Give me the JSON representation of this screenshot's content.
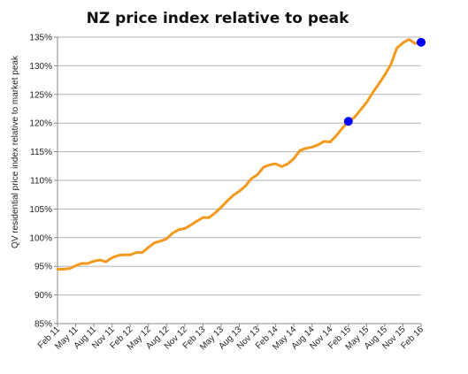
{
  "chart_data": {
    "type": "line",
    "title": "NZ price index relative to peak",
    "ylabel": "QV residential price index relative to market peak",
    "xlabel": "",
    "ylim": [
      85,
      135
    ],
    "y_ticks": [
      "85%",
      "90%",
      "95%",
      "100%",
      "105%",
      "110%",
      "115%",
      "120%",
      "125%",
      "130%",
      "135%"
    ],
    "x_ticks": [
      "Feb 11",
      "May 11",
      "Aug 11",
      "Nov 11",
      "Feb 12",
      "May 12",
      "Aug 12",
      "Nov 12",
      "Feb 13",
      "May 13",
      "Aug 13",
      "Nov 13",
      "Feb 14",
      "May 14",
      "Aug 14",
      "Nov 14",
      "Feb 15",
      "May 15",
      "Aug 15",
      "Nov 15",
      "Feb 16"
    ],
    "grid": true,
    "legend": "none",
    "line_color": "#F39A1E",
    "marker_color": "#0000FF",
    "series": [
      {
        "x": [
          "Feb 11",
          "Mar 11",
          "Apr 11",
          "May 11",
          "Jun 11",
          "Jul 11",
          "Aug 11",
          "Sep 11",
          "Oct 11",
          "Nov 11",
          "Dec 11",
          "Jan 12",
          "Feb 12",
          "Mar 12",
          "Apr 12",
          "May 12",
          "Jun 12",
          "Jul 12",
          "Aug 12",
          "Sep 12",
          "Oct 12",
          "Nov 12",
          "Dec 12",
          "Jan 13",
          "Feb 13",
          "Mar 13",
          "Apr 13",
          "May 13",
          "Jun 13",
          "Jul 13",
          "Aug 13",
          "Sep 13",
          "Oct 13",
          "Nov 13",
          "Dec 13",
          "Jan 14",
          "Feb 14",
          "Mar 14",
          "Apr 14",
          "May 14",
          "Jun 14",
          "Jul 14",
          "Aug 14",
          "Sep 14",
          "Oct 14",
          "Nov 14",
          "Dec 14",
          "Jan 15",
          "Feb 15",
          "Mar 15",
          "Apr 15",
          "May 15",
          "Jun 15",
          "Jul 15",
          "Aug 15",
          "Sep 15",
          "Oct 15",
          "Nov 15",
          "Dec 15",
          "Jan 16",
          "Feb 16"
        ],
        "values": [
          94.5,
          94.5,
          94.6,
          95.1,
          95.5,
          95.5,
          95.9,
          96.1,
          95.8,
          96.5,
          96.9,
          97.0,
          97.0,
          97.4,
          97.4,
          98.3,
          99.1,
          99.4,
          99.8,
          100.8,
          101.4,
          101.6,
          102.2,
          102.9,
          103.5,
          103.5,
          104.3,
          105.3,
          106.4,
          107.4,
          108.1,
          109.0,
          110.3,
          111.0,
          112.3,
          112.7,
          112.9,
          112.4,
          112.9,
          113.8,
          115.2,
          115.6,
          115.8,
          116.2,
          116.8,
          116.7,
          117.8,
          119.1,
          120.3,
          121.0,
          122.3,
          123.6,
          125.3,
          126.8,
          128.4,
          130.2,
          133.1,
          134.0,
          134.6,
          133.9,
          134.1
        ],
        "highlight_points": [
          {
            "x": "Feb 15",
            "value": 120.3
          },
          {
            "x": "Feb 16",
            "value": 134.1
          }
        ]
      }
    ]
  }
}
